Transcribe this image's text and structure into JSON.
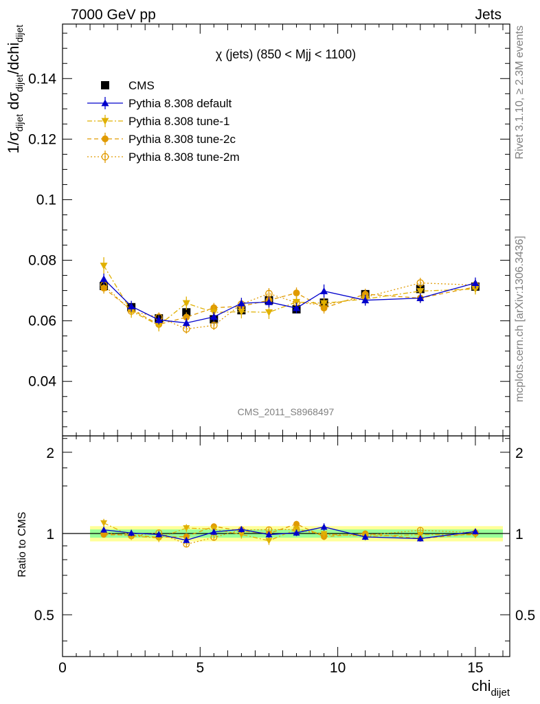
{
  "header": {
    "left": "7000 GeV pp",
    "right": "Jets"
  },
  "side_labels": {
    "rivet": "Rivet 3.1.10, ≥ 2.3M events",
    "mcplots": "mcplots.cern.ch [arXiv:1306.3436]"
  },
  "chart_data": {
    "type": "line",
    "title": "χ (jets) (850 < Mjj < 1100)",
    "watermark": "CMS_2011_S8968497",
    "xlabel": "chi",
    "xlabel_sub": "dijet",
    "ylabel": "1/σdijet dσdijet/dchidijet",
    "ylabel_parts": [
      "1/σ",
      "dijet",
      " dσ",
      "dijet",
      "/dchi",
      "dijet"
    ],
    "ratio_ylabel": "Ratio to CMS",
    "xlim": [
      0,
      16.25
    ],
    "ylim": [
      0.022,
      0.158
    ],
    "ratio_ylim": [
      0.35,
      2.3
    ],
    "x_ticks": [
      0,
      5,
      10,
      15
    ],
    "x_tick_labels": [
      "0",
      "5",
      "10",
      "15"
    ],
    "y_ticks": [
      0.04,
      0.06,
      0.08,
      0.1,
      0.12,
      0.14
    ],
    "y_tick_labels": [
      "0.04",
      "0.06",
      "0.08",
      "0.1",
      "0.12",
      "0.14"
    ],
    "ratio_ticks": [
      0.5,
      1,
      2
    ],
    "ratio_tick_labels": [
      "0.5",
      "1",
      "2"
    ],
    "x": [
      1.5,
      2.5,
      3.5,
      4.5,
      5.5,
      6.5,
      7.5,
      8.5,
      9.5,
      11.0,
      13.0,
      15.0
    ],
    "x_edges": [
      [
        1,
        2
      ],
      [
        2,
        3
      ],
      [
        3,
        4
      ],
      [
        4,
        5
      ],
      [
        5,
        6
      ],
      [
        6,
        7
      ],
      [
        7,
        8
      ],
      [
        8,
        9
      ],
      [
        9,
        10
      ],
      [
        10,
        12
      ],
      [
        12,
        14
      ],
      [
        14,
        16
      ]
    ],
    "data": {
      "name": "CMS",
      "values": [
        0.0715,
        0.0645,
        0.0608,
        0.0628,
        0.0605,
        0.0635,
        0.0668,
        0.0638,
        0.066,
        0.0688,
        0.0705,
        0.0713
      ],
      "band_inner": 0.035,
      "band_outer": 0.065
    },
    "series": [
      {
        "name": "Pythia 8.308 default",
        "color": "#0000cc",
        "marker": "triangle-up",
        "line": "solid",
        "values": [
          0.0738,
          0.0648,
          0.0603,
          0.0593,
          0.0613,
          0.0658,
          0.0662,
          0.0642,
          0.0698,
          0.0668,
          0.0675,
          0.0725
        ],
        "errors": [
          0.0018,
          0.0018,
          0.0015,
          0.0015,
          0.0016,
          0.0018,
          0.0018,
          0.0018,
          0.0022,
          0.0018,
          0.0016,
          0.0018
        ]
      },
      {
        "name": "Pythia 8.308 tune-1",
        "color": "#e0b000",
        "marker": "triangle-down",
        "line": "dashdot",
        "values": [
          0.0782,
          0.0632,
          0.0585,
          0.0658,
          0.0628,
          0.063,
          0.0628,
          0.0662,
          0.0658,
          0.0672,
          0.0698,
          0.0705
        ],
        "errors": [
          0.0028,
          0.0022,
          0.002,
          0.0022,
          0.0022,
          0.0022,
          0.0022,
          0.0022,
          0.0022,
          0.002,
          0.0018,
          0.0018
        ]
      },
      {
        "name": "Pythia 8.308 tune-2c",
        "color": "#e09a00",
        "marker": "circle",
        "line": "dashed",
        "values": [
          0.0708,
          0.0637,
          0.0588,
          0.0612,
          0.0643,
          0.0648,
          0.0668,
          0.0692,
          0.0642,
          0.0688,
          0.0675,
          0.0712
        ],
        "errors": [
          0.0018,
          0.0018,
          0.0016,
          0.0016,
          0.0016,
          0.0018,
          0.0018,
          0.0018,
          0.0018,
          0.0018,
          0.0016,
          0.0018
        ]
      },
      {
        "name": "Pythia 8.308 tune-2m",
        "color": "#e09a00",
        "marker": "circle-open",
        "line": "dotted",
        "values": [
          0.0718,
          0.0632,
          0.0612,
          0.0573,
          0.0585,
          0.0655,
          0.069,
          0.066,
          0.0653,
          0.0678,
          0.0725,
          0.0718
        ],
        "errors": [
          0.0018,
          0.0016,
          0.0016,
          0.0015,
          0.0015,
          0.0017,
          0.0018,
          0.0018,
          0.0018,
          0.0017,
          0.0017,
          0.0018
        ]
      }
    ],
    "legend_position": "top-left"
  }
}
